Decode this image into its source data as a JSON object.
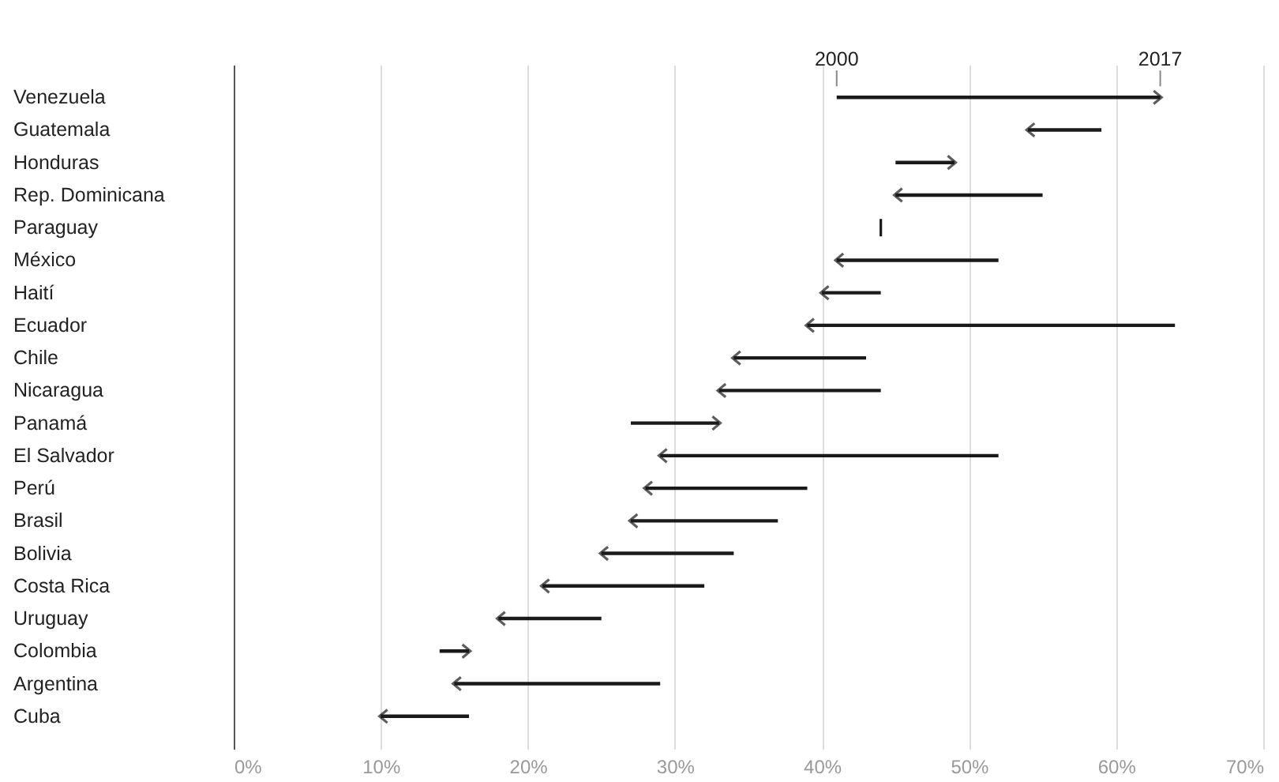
{
  "chart_data": {
    "type": "bar",
    "orientation": "horizontal",
    "categories": [
      "Venezuela",
      "Guatemala",
      "Honduras",
      "Rep. Dominicana",
      "Paraguay",
      "México",
      "Haití",
      "Ecuador",
      "Chile",
      "Nicaragua",
      "Panamá",
      "El Salvador",
      "Perú",
      "Brasil",
      "Bolivia",
      "Costa Rica",
      "Uruguay",
      "Colombia",
      "Argentina",
      "Cuba"
    ],
    "base": [
      41,
      59,
      45,
      55,
      44,
      52,
      44,
      64,
      43,
      44,
      27,
      52,
      39,
      37,
      34,
      32,
      25,
      14,
      29,
      16
    ],
    "values": [
      22,
      -5,
      4,
      -10,
      0,
      -11,
      -4,
      -25,
      -9,
      -11,
      6,
      -23,
      -11,
      -10,
      -9,
      -11,
      -7,
      2,
      -14,
      -6
    ],
    "color": "#1a1a1a",
    "xlim": [
      0,
      70
    ],
    "xticks": [
      {
        "value": 0,
        "label": "0%"
      },
      {
        "value": 10,
        "label": "10%"
      },
      {
        "value": 20,
        "label": "20%"
      },
      {
        "value": 30,
        "label": "30%"
      },
      {
        "value": 40,
        "label": "40%"
      },
      {
        "value": 50,
        "label": "50%"
      },
      {
        "value": 60,
        "label": "60%"
      },
      {
        "value": 70,
        "label": "70%"
      }
    ],
    "grid": "x",
    "annotations": [
      {
        "text": "2000",
        "x": 41,
        "y": "Venezuela"
      },
      {
        "text": "2017",
        "x": 63,
        "y": "Venezuela"
      }
    ]
  }
}
